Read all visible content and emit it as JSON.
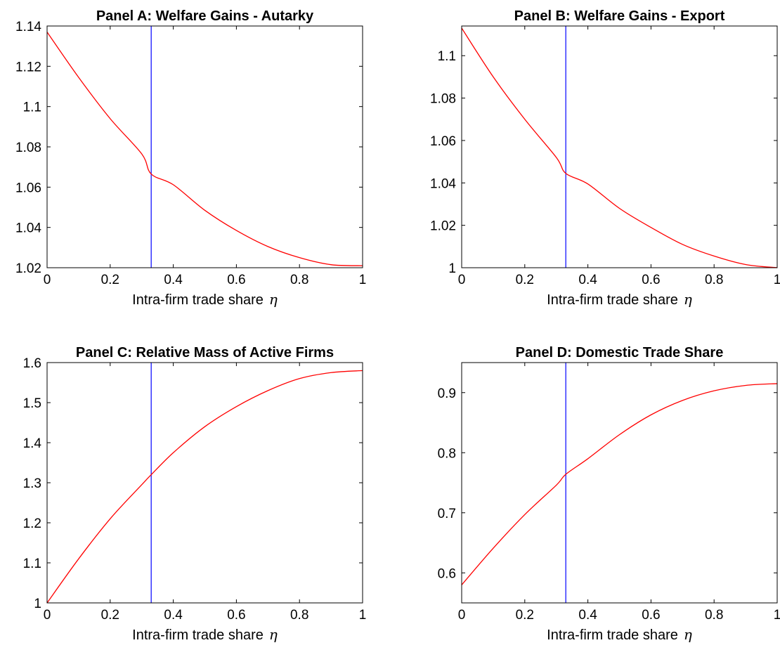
{
  "figure": {
    "colors": {
      "curve": "#ff0000",
      "marker_line": "#0000ff",
      "axes": "#000000",
      "background": "#ffffff"
    }
  },
  "chart_data": [
    {
      "type": "line",
      "title": "Panel A: Welfare Gains - Autarky",
      "xlabel": "Intra-firm trade share",
      "xlabel_symbol": "η",
      "xlim": [
        0,
        1
      ],
      "ylim": [
        1.02,
        1.14
      ],
      "xticks": [
        0,
        0.2,
        0.4,
        0.6,
        0.8,
        1
      ],
      "xtick_labels": [
        "0",
        "0.2",
        "0.4",
        "0.6",
        "0.8",
        "1"
      ],
      "yticks": [
        1.02,
        1.04,
        1.06,
        1.08,
        1.1,
        1.12,
        1.14
      ],
      "ytick_labels": [
        "1.02",
        "1.04",
        "1.06",
        "1.08",
        "1.1",
        "1.12",
        "1.14"
      ],
      "grid": false,
      "vline_x": 0.33,
      "series": [
        {
          "x": [
            0,
            0.1,
            0.2,
            0.3,
            0.33,
            0.4,
            0.5,
            0.6,
            0.7,
            0.8,
            0.9,
            1.0
          ],
          "values": [
            1.137,
            1.1145,
            1.094,
            1.0765,
            1.0665,
            1.0612,
            1.0485,
            1.0385,
            1.0305,
            1.025,
            1.0215,
            1.021
          ]
        }
      ]
    },
    {
      "type": "line",
      "title": "Panel B: Welfare Gains - Export",
      "xlabel": "Intra-firm trade share",
      "xlabel_symbol": "η",
      "xlim": [
        0,
        1
      ],
      "ylim": [
        1.0,
        1.114
      ],
      "xticks": [
        0,
        0.2,
        0.4,
        0.6,
        0.8,
        1
      ],
      "xtick_labels": [
        "0",
        "0.2",
        "0.4",
        "0.6",
        "0.8",
        "1"
      ],
      "yticks": [
        1.0,
        1.02,
        1.04,
        1.06,
        1.08,
        1.1
      ],
      "ytick_labels": [
        "1",
        "1.02",
        "1.04",
        "1.06",
        "1.08",
        "1.1"
      ],
      "grid": false,
      "vline_x": 0.33,
      "series": [
        {
          "x": [
            0,
            0.1,
            0.2,
            0.3,
            0.33,
            0.4,
            0.5,
            0.6,
            0.7,
            0.8,
            0.9,
            1.0
          ],
          "values": [
            1.113,
            1.09,
            1.07,
            1.052,
            1.0445,
            1.0395,
            1.028,
            1.019,
            1.011,
            1.0055,
            1.0015,
            1.0
          ]
        }
      ]
    },
    {
      "type": "line",
      "title": "Panel C: Relative Mass of Active Firms",
      "xlabel": "Intra-firm trade share",
      "xlabel_symbol": "η",
      "xlim": [
        0,
        1
      ],
      "ylim": [
        1.0,
        1.6
      ],
      "xticks": [
        0,
        0.2,
        0.4,
        0.6,
        0.8,
        1
      ],
      "xtick_labels": [
        "0",
        "0.2",
        "0.4",
        "0.6",
        "0.8",
        "1"
      ],
      "yticks": [
        1.0,
        1.1,
        1.2,
        1.3,
        1.4,
        1.5,
        1.6
      ],
      "ytick_labels": [
        "1",
        "1.1",
        "1.2",
        "1.3",
        "1.4",
        "1.5",
        "1.6"
      ],
      "grid": false,
      "vline_x": 0.33,
      "series": [
        {
          "x": [
            0,
            0.1,
            0.2,
            0.3,
            0.33,
            0.4,
            0.5,
            0.6,
            0.7,
            0.8,
            0.9,
            1.0
          ],
          "values": [
            1.0,
            1.11,
            1.21,
            1.295,
            1.32,
            1.375,
            1.44,
            1.49,
            1.53,
            1.56,
            1.575,
            1.58
          ]
        }
      ]
    },
    {
      "type": "line",
      "title": "Panel D: Domestic Trade Share",
      "xlabel": "Intra-firm trade share",
      "xlabel_symbol": "η",
      "xlim": [
        0,
        1
      ],
      "ylim": [
        0.55,
        0.95
      ],
      "xticks": [
        0,
        0.2,
        0.4,
        0.6,
        0.8,
        1
      ],
      "xtick_labels": [
        "0",
        "0.2",
        "0.4",
        "0.6",
        "0.8",
        "1"
      ],
      "yticks": [
        0.6,
        0.7,
        0.8,
        0.9
      ],
      "ytick_labels": [
        "0.6",
        "0.7",
        "0.8",
        "0.9"
      ],
      "grid": false,
      "vline_x": 0.33,
      "series": [
        {
          "x": [
            0,
            0.1,
            0.2,
            0.3,
            0.33,
            0.4,
            0.5,
            0.6,
            0.7,
            0.8,
            0.9,
            1.0
          ],
          "values": [
            0.58,
            0.641,
            0.697,
            0.746,
            0.764,
            0.79,
            0.83,
            0.863,
            0.887,
            0.903,
            0.912,
            0.915
          ]
        }
      ]
    }
  ]
}
